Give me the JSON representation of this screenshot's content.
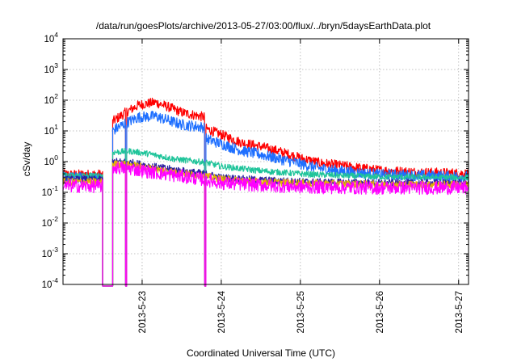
{
  "chart_data": {
    "type": "line",
    "title": "/data/run/goesPlots/archive/2013-05-27/03:00/flux/../bryn/5daysEarthData.plot",
    "xlabel": "Coordinated Universal Time (UTC)",
    "ylabel": "cSv/day",
    "yscale": "log",
    "ylim": [
      0.0001,
      10000
    ],
    "xlim": [
      "2013-05-22 00:00",
      "2013-05-27 03:00"
    ],
    "grid": true,
    "legend": "none",
    "y_ticks": [
      {
        "base": "10",
        "exp": "-4",
        "value": 0.0001
      },
      {
        "base": "10",
        "exp": "-3",
        "value": 0.001
      },
      {
        "base": "10",
        "exp": "-2",
        "value": 0.01
      },
      {
        "base": "10",
        "exp": "-1",
        "value": 0.1
      },
      {
        "base": "10",
        "exp": "0",
        "value": 1
      },
      {
        "base": "10",
        "exp": "1",
        "value": 10
      },
      {
        "base": "10",
        "exp": "2",
        "value": 100
      },
      {
        "base": "10",
        "exp": "3",
        "value": 1000
      },
      {
        "base": "10",
        "exp": "4",
        "value": 10000
      }
    ],
    "x_ticks": [
      {
        "label": "2013-5-23",
        "value": "2013-05-23 00:00"
      },
      {
        "label": "2013-5-24",
        "value": "2013-05-24 00:00"
      },
      {
        "label": "2013-5-25",
        "value": "2013-05-25 00:00"
      },
      {
        "label": "2013-5-26",
        "value": "2013-05-26 00:00"
      },
      {
        "label": "2013-5-27",
        "value": "2013-05-27 00:00"
      }
    ],
    "gaps": [
      {
        "from": "2013-05-22 12:00",
        "to": "2013-05-22 15:00"
      },
      {
        "from": "2013-05-22 19:00",
        "to": "2013-05-22 19:20"
      },
      {
        "from": "2013-05-23 19:00",
        "to": "2013-05-23 19:20"
      }
    ],
    "series": [
      {
        "color": "#ff0000",
        "noise": 0.16,
        "x": [
          "2013-05-22 00:00",
          "2013-05-22 12:00",
          "2013-05-22 15:00",
          "2013-05-22 19:00",
          "2013-05-22 23:00",
          "2013-05-23 04:00",
          "2013-05-23 08:00",
          "2013-05-23 12:00",
          "2013-05-23 19:00",
          "2013-05-23 19:20",
          "2013-05-24 00:00",
          "2013-05-24 06:00",
          "2013-05-24 12:00",
          "2013-05-24 18:00",
          "2013-05-25 00:00",
          "2013-05-25 06:00",
          "2013-05-25 12:00",
          "2013-05-25 18:00",
          "2013-05-26 00:00",
          "2013-05-26 12:00",
          "2013-05-27 00:00",
          "2013-05-27 03:00"
        ],
        "y": [
          0.38,
          0.38,
          20,
          40,
          70,
          85,
          60,
          40,
          28,
          12,
          7.5,
          4.2,
          3.1,
          2.1,
          1.3,
          0.9,
          0.75,
          0.62,
          0.52,
          0.45,
          0.42,
          0.4
        ]
      },
      {
        "color": "#1e6fff",
        "noise": 0.18,
        "x": [
          "2013-05-22 00:00",
          "2013-05-22 12:00",
          "2013-05-22 15:00",
          "2013-05-22 19:00",
          "2013-05-22 23:00",
          "2013-05-23 04:00",
          "2013-05-23 08:00",
          "2013-05-23 12:00",
          "2013-05-23 19:00",
          "2013-05-23 19:20",
          "2013-05-24 00:00",
          "2013-05-24 06:00",
          "2013-05-24 12:00",
          "2013-05-24 18:00",
          "2013-05-25 00:00",
          "2013-05-25 06:00",
          "2013-05-25 12:00",
          "2013-05-25 18:00",
          "2013-05-26 00:00",
          "2013-05-26 12:00",
          "2013-05-27 00:00",
          "2013-05-27 03:00"
        ],
        "y": [
          0.3,
          0.3,
          10,
          18,
          28,
          30,
          22,
          16,
          13,
          5.5,
          3.8,
          2.3,
          1.7,
          1.2,
          0.85,
          0.6,
          0.5,
          0.43,
          0.38,
          0.35,
          0.33,
          0.32
        ]
      },
      {
        "color": "#1fc49a",
        "noise": 0.1,
        "x": [
          "2013-05-22 00:00",
          "2013-05-22 12:00",
          "2013-05-22 15:00",
          "2013-05-22 20:00",
          "2013-05-23 02:00",
          "2013-05-23 10:00",
          "2013-05-23 19:00",
          "2013-05-24 00:00",
          "2013-05-24 12:00",
          "2013-05-25 00:00",
          "2013-05-25 12:00",
          "2013-05-26 00:00",
          "2013-05-27 00:00",
          "2013-05-27 03:00"
        ],
        "y": [
          0.35,
          0.35,
          2,
          2.2,
          1.8,
          1.2,
          0.95,
          0.7,
          0.5,
          0.4,
          0.35,
          0.32,
          0.3,
          0.3
        ]
      },
      {
        "color": "#2a1fa0",
        "noise": 0.12,
        "x": [
          "2013-05-22 00:00",
          "2013-05-22 12:00",
          "2013-05-22 15:00",
          "2013-05-22 20:00",
          "2013-05-23 03:00",
          "2013-05-23 12:00",
          "2013-05-23 19:00",
          "2013-05-24 00:00",
          "2013-05-24 12:00",
          "2013-05-25 00:00",
          "2013-05-26 00:00",
          "2013-05-27 03:00"
        ],
        "y": [
          0.26,
          0.26,
          1.0,
          0.95,
          0.7,
          0.5,
          0.4,
          0.3,
          0.25,
          0.22,
          0.2,
          0.2
        ]
      },
      {
        "color": "#e6b400",
        "noise": 0.12,
        "x": [
          "2013-05-22 00:00",
          "2013-05-22 12:00",
          "2013-05-22 15:00",
          "2013-05-22 20:00",
          "2013-05-23 03:00",
          "2013-05-23 12:00",
          "2013-05-23 19:00",
          "2013-05-24 00:00",
          "2013-05-24 12:00",
          "2013-05-25 00:00",
          "2013-05-26 00:00",
          "2013-05-27 03:00"
        ],
        "y": [
          0.22,
          0.22,
          0.85,
          0.8,
          0.6,
          0.42,
          0.34,
          0.27,
          0.22,
          0.2,
          0.18,
          0.18
        ]
      },
      {
        "color": "#ff00ff",
        "noise": 0.22,
        "x": [
          "2013-05-22 00:00",
          "2013-05-22 12:00",
          "2013-05-22 15:00",
          "2013-05-22 20:00",
          "2013-05-23 03:00",
          "2013-05-23 12:00",
          "2013-05-23 19:00",
          "2013-05-24 00:00",
          "2013-05-24 12:00",
          "2013-05-25 00:00",
          "2013-05-26 00:00",
          "2013-05-27 03:00"
        ],
        "y": [
          0.16,
          0.16,
          0.65,
          0.6,
          0.45,
          0.33,
          0.26,
          0.2,
          0.17,
          0.15,
          0.14,
          0.14
        ]
      }
    ]
  }
}
